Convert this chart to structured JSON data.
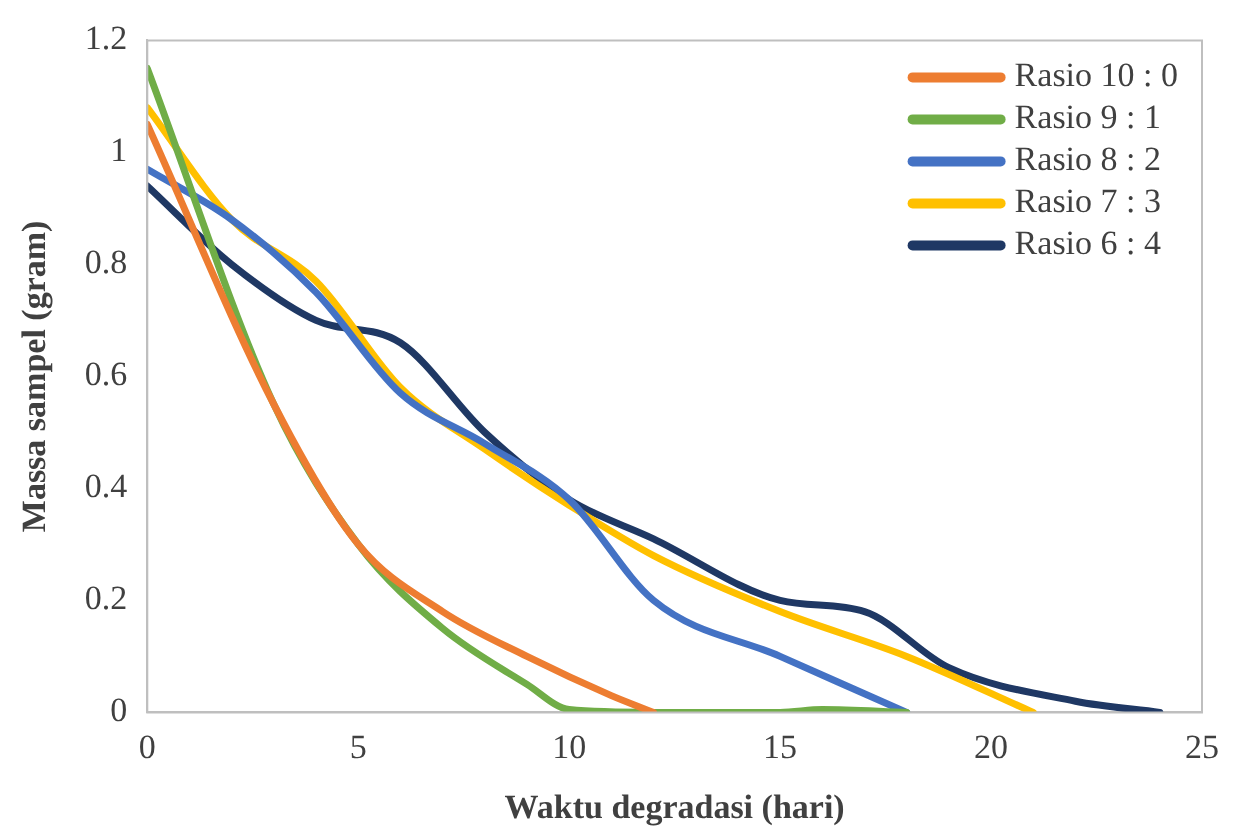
{
  "chart_data": {
    "type": "line",
    "xlabel": "Waktu degradasi (hari)",
    "ylabel": "Massa sampel (gram)",
    "xlim": [
      0,
      25
    ],
    "xticks": [
      0,
      5,
      10,
      15,
      20,
      25
    ],
    "ylim": [
      0,
      1.2
    ],
    "yticks": [
      0,
      0.2,
      0.4,
      0.6,
      0.8,
      1,
      1.2
    ],
    "grid": false,
    "legend": "top right",
    "marker": "none",
    "line_style": "solid",
    "series": [
      {
        "name": "Rasio 10 : 0",
        "color": "#ed7d31",
        "x": [
          0,
          3,
          5,
          7,
          9,
          11,
          12
        ],
        "values": [
          1.05,
          0.55,
          0.3,
          0.18,
          0.1,
          0.03,
          0
        ]
      },
      {
        "name": "Rasio 9 : 1",
        "color": "#70ad47",
        "x": [
          0,
          3,
          5,
          7,
          9,
          10,
          12,
          15,
          16,
          18
        ],
        "values": [
          1.15,
          0.55,
          0.3,
          0.15,
          0.05,
          0.005,
          0,
          0,
          0.005,
          0
        ]
      },
      {
        "name": "Rasio 8 : 2",
        "color": "#4472c4",
        "x": [
          0,
          2,
          4,
          6,
          8,
          10,
          12,
          15,
          18
        ],
        "values": [
          0.97,
          0.88,
          0.75,
          0.57,
          0.48,
          0.38,
          0.2,
          0.1,
          0
        ]
      },
      {
        "name": "Rasio 7 : 3",
        "color": "#ffc000",
        "x": [
          0,
          2,
          4,
          6,
          8,
          10,
          12,
          15,
          18,
          21
        ],
        "values": [
          1.08,
          0.88,
          0.77,
          0.58,
          0.47,
          0.37,
          0.28,
          0.18,
          0.1,
          0
        ]
      },
      {
        "name": "Rasio 6 : 4",
        "color": "#1f3864",
        "x": [
          0,
          2,
          4,
          6,
          8,
          10,
          12,
          15,
          17,
          19,
          22,
          24
        ],
        "values": [
          0.94,
          0.8,
          0.7,
          0.66,
          0.5,
          0.38,
          0.31,
          0.2,
          0.18,
          0.08,
          0.02,
          0
        ]
      }
    ]
  }
}
